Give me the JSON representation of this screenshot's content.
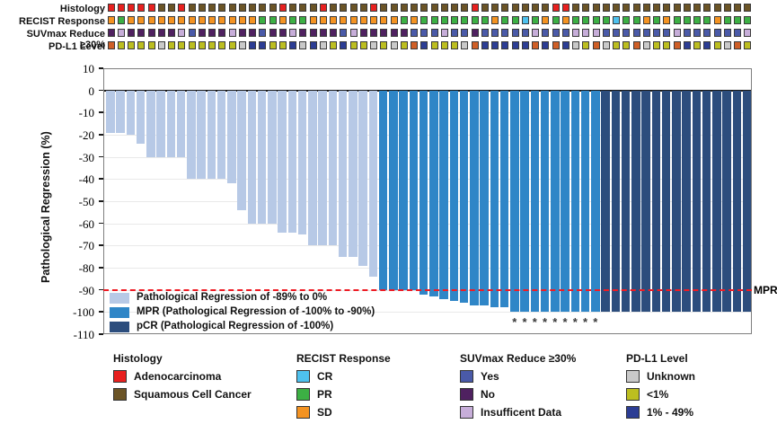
{
  "tracks": {
    "labels": [
      "Histology",
      "RECIST Response",
      "SUVmax Reduce ≥30%",
      "PD-L1 Level"
    ],
    "histology": [
      "R",
      "R",
      "R",
      "R",
      "R",
      "B",
      "B",
      "R",
      "B",
      "B",
      "B",
      "B",
      "B",
      "B",
      "B",
      "B",
      "B",
      "R",
      "B",
      "B",
      "B",
      "R",
      "B",
      "B",
      "B",
      "B",
      "R",
      "B",
      "B",
      "B",
      "B",
      "B",
      "B",
      "B",
      "B",
      "B",
      "R",
      "B",
      "B",
      "B",
      "B",
      "B",
      "B",
      "B",
      "R",
      "R",
      "B",
      "B",
      "B",
      "B",
      "B",
      "B",
      "B",
      "B",
      "B",
      "B",
      "B",
      "B",
      "B",
      "B",
      "B",
      "B",
      "B",
      "B"
    ],
    "recist": [
      "O",
      "G",
      "O",
      "O",
      "O",
      "O",
      "O",
      "O",
      "O",
      "O",
      "O",
      "O",
      "O",
      "O",
      "O",
      "G",
      "G",
      "O",
      "G",
      "G",
      "O",
      "O",
      "O",
      "O",
      "O",
      "O",
      "O",
      "O",
      "O",
      "G",
      "O",
      "G",
      "G",
      "G",
      "G",
      "G",
      "G",
      "G",
      "O",
      "G",
      "G",
      "C",
      "G",
      "O",
      "G",
      "O",
      "G",
      "G",
      "G",
      "G",
      "C",
      "G",
      "G",
      "O",
      "G",
      "O",
      "G",
      "G",
      "G",
      "G",
      "O",
      "G",
      "G",
      "G"
    ],
    "suvmax": [
      "N",
      "I",
      "N",
      "N",
      "N",
      "N",
      "N",
      "I",
      "Y",
      "N",
      "N",
      "N",
      "I",
      "N",
      "N",
      "Y",
      "N",
      "N",
      "I",
      "N",
      "N",
      "N",
      "N",
      "Y",
      "I",
      "N",
      "N",
      "N",
      "N",
      "N",
      "Y",
      "Y",
      "Y",
      "I",
      "Y",
      "Y",
      "N",
      "Y",
      "Y",
      "Y",
      "Y",
      "Y",
      "I",
      "Y",
      "Y",
      "Y",
      "I",
      "I",
      "I",
      "Y",
      "Y",
      "Y",
      "Y",
      "Y",
      "Y",
      "Y",
      "I",
      "Y",
      "Y",
      "Y",
      "Y",
      "Y",
      "Y",
      "I"
    ],
    "pdl1": [
      "O",
      "L",
      "L",
      "L",
      "L",
      "U",
      "L",
      "L",
      "L",
      "L",
      "L",
      "L",
      "L",
      "U",
      "M",
      "M",
      "L",
      "L",
      "M",
      "U",
      "M",
      "U",
      "L",
      "M",
      "L",
      "L",
      "U",
      "L",
      "U",
      "L",
      "O",
      "M",
      "L",
      "L",
      "L",
      "U",
      "O",
      "M",
      "M",
      "M",
      "M",
      "M",
      "O",
      "M",
      "O",
      "M",
      "U",
      "L",
      "O",
      "U",
      "L",
      "L",
      "O",
      "U",
      "L",
      "L",
      "O",
      "M",
      "L",
      "M",
      "L",
      "U",
      "O",
      "L"
    ]
  },
  "track_colors": {
    "histology": {
      "R": "#e8201f",
      "B": "#6b5426"
    },
    "recist": {
      "O": "#f49322",
      "G": "#3cb044",
      "C": "#4ec1ee"
    },
    "suvmax": {
      "Y": "#4a5aa8",
      "N": "#4f2160",
      "I": "#c7aed9"
    },
    "pdl1": {
      "U": "#c9c9c9",
      "L": "#bcbe20",
      "M": "#2c3d94",
      "O": "#cf5f27"
    }
  },
  "chart_data": {
    "type": "bar",
    "title": "",
    "ylabel": "Pathological Regression (%)",
    "ylim": [
      -110,
      10
    ],
    "ytick_step": 10,
    "yticks": [
      "10",
      "0",
      "-10",
      "-20",
      "-30",
      "-40",
      "-50",
      "-60",
      "-70",
      "-80",
      "-90",
      "-100",
      "-110"
    ],
    "grid": "horizontal",
    "values": [
      -19,
      -19,
      -20,
      -24,
      -30,
      -30,
      -30,
      -30,
      -40,
      -40,
      -40,
      -40,
      -42,
      -54,
      -60,
      -60,
      -60,
      -64,
      -64,
      -65,
      -70,
      -70,
      -70,
      -75,
      -75,
      -79,
      -84,
      -90,
      -90,
      -90,
      -90,
      -92,
      -93,
      -94,
      -95,
      -96,
      -97,
      -97,
      -98,
      -98,
      -100,
      -100,
      -100,
      -100,
      -100,
      -100,
      -100,
      -100,
      -100,
      -100,
      -100,
      -100,
      -100,
      -100,
      -100,
      -100,
      -100,
      -100,
      -100,
      -100,
      -100,
      -100,
      -100,
      -100
    ],
    "bar_classes": [
      "regression",
      "regression",
      "regression",
      "regression",
      "regression",
      "regression",
      "regression",
      "regression",
      "regression",
      "regression",
      "regression",
      "regression",
      "regression",
      "regression",
      "regression",
      "regression",
      "regression",
      "regression",
      "regression",
      "regression",
      "regression",
      "regression",
      "regression",
      "regression",
      "regression",
      "regression",
      "regression",
      "mpr",
      "mpr",
      "mpr",
      "mpr",
      "mpr",
      "mpr",
      "mpr",
      "mpr",
      "mpr",
      "mpr",
      "mpr",
      "mpr",
      "mpr",
      "mpr",
      "mpr",
      "mpr",
      "mpr",
      "mpr",
      "mpr",
      "mpr",
      "mpr",
      "mpr",
      "pcr",
      "pcr",
      "pcr",
      "pcr",
      "pcr",
      "pcr",
      "pcr",
      "pcr",
      "pcr",
      "pcr",
      "pcr",
      "pcr",
      "pcr",
      "pcr",
      "pcr"
    ],
    "asterisk_indices": [
      40,
      41,
      42,
      43,
      44,
      45,
      46,
      47,
      48
    ],
    "asterisk_symbol": "*",
    "threshold_line": {
      "value": -90,
      "label": "MPR",
      "color": "#ee1c25"
    }
  },
  "bar_colors": {
    "regression": "#b7c9e6",
    "mpr": "#2f86c7",
    "pcr": "#2c4d7d"
  },
  "plot_legend": [
    {
      "class": "regression",
      "label": "Pathological Regression of -89% to 0%"
    },
    {
      "class": "mpr",
      "label": "MPR (Pathological Regression of -100% to -90%)"
    },
    {
      "class": "pcr",
      "label": "pCR (Pathological Regression of -100%)"
    }
  ],
  "bottom_legends": [
    {
      "title": "Histology",
      "items": [
        {
          "label": "Adenocarcinoma",
          "color": "#e8201f"
        },
        {
          "label": "Squamous Cell Cancer",
          "color": "#6b5426"
        }
      ]
    },
    {
      "title": "RECIST Response",
      "items": [
        {
          "label": "CR",
          "color": "#4ec1ee"
        },
        {
          "label": "PR",
          "color": "#3cb044"
        },
        {
          "label": "SD",
          "color": "#f49322"
        }
      ]
    },
    {
      "title": "SUVmax Reduce ≥30%",
      "items": [
        {
          "label": "Yes",
          "color": "#4a5aa8"
        },
        {
          "label": "No",
          "color": "#4f2160"
        },
        {
          "label": "Insufficent Data",
          "color": "#c7aed9"
        }
      ]
    },
    {
      "title": "PD-L1 Level",
      "items": [
        {
          "label": "Unknown",
          "color": "#c9c9c9"
        },
        {
          "label": "<1%",
          "color": "#bcbe20"
        },
        {
          "label": "1% - 49%",
          "color": "#2c3d94"
        },
        {
          "label": ">=50%",
          "color": "#cf5f27"
        }
      ]
    }
  ]
}
